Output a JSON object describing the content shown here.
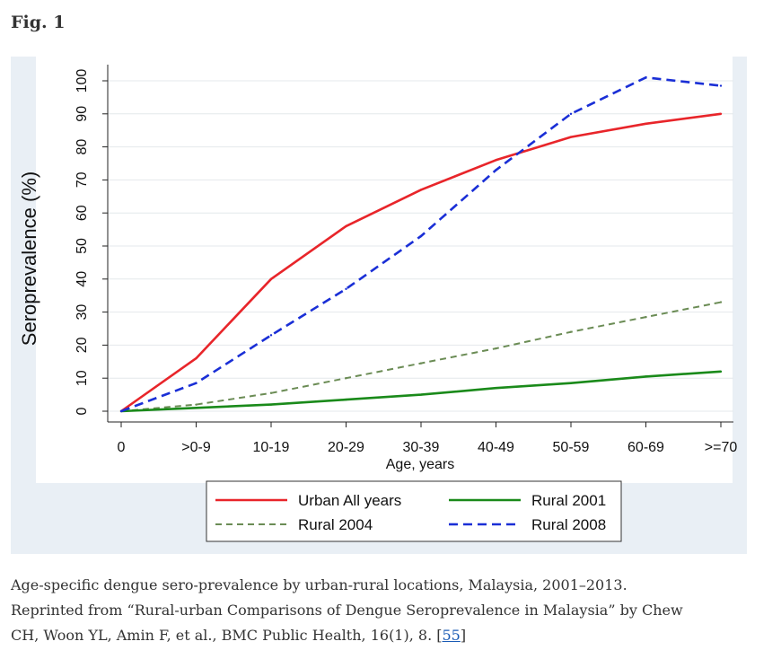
{
  "figure": {
    "label": "Fig. 1",
    "caption_line1": "Age-specific dengue sero-prevalence by urban-rural locations, Malaysia, 2001–2013.",
    "caption_line2": "Reprinted from “Rural-urban Comparisons of Dengue Seroprevalence in Malaysia” by Chew",
    "caption_line3_prefix": "CH, Woon YL, Amin F, et al., BMC Public Health, 16(1), 8. [",
    "caption_ref": "55",
    "caption_line3_suffix": "]"
  },
  "chart_data": {
    "type": "line",
    "title": "",
    "xlabel": "Age, years",
    "ylabel": "Seroprevalence (%)",
    "categories": [
      "0",
      ">0-9",
      "10-19",
      "20-29",
      "30-39",
      "40-49",
      "50-59",
      "60-69",
      ">=70"
    ],
    "ylim": [
      0,
      100
    ],
    "yticks": [
      0,
      10,
      20,
      30,
      40,
      50,
      60,
      70,
      80,
      90,
      100
    ],
    "grid": true,
    "legend_position": "bottom",
    "series": [
      {
        "name": "Urban All years",
        "values": [
          0,
          16,
          40,
          56,
          67,
          76,
          83,
          87,
          90
        ],
        "color": "#e8252a",
        "dash": "solid"
      },
      {
        "name": "Rural 2001",
        "values": [
          0,
          1,
          2,
          3.5,
          5,
          7,
          8.5,
          10.5,
          12
        ],
        "color": "#1a8a1a",
        "dash": "solid"
      },
      {
        "name": "Rural 2004",
        "values": [
          0,
          2,
          5.5,
          10,
          14.5,
          19,
          24,
          28.5,
          33
        ],
        "color": "#6b8c55",
        "dash": "short"
      },
      {
        "name": "Rural 2008",
        "values": [
          0,
          8.5,
          23,
          37,
          53,
          73,
          90,
          101,
          98.5
        ],
        "color": "#1a2fd6",
        "dash": "long"
      }
    ]
  }
}
